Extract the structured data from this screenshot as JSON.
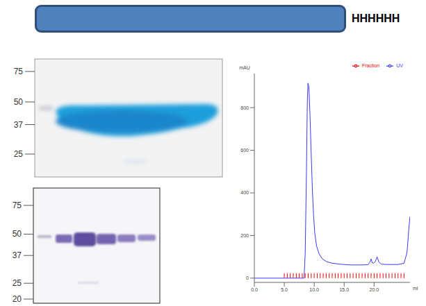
{
  "construct": {
    "tag": "HHHHHH"
  },
  "gels": [
    {
      "markers": [
        75,
        50,
        37,
        25
      ]
    },
    {
      "markers": [
        75,
        50,
        37,
        25,
        20
      ]
    }
  ],
  "chart_data": {
    "type": "line",
    "y_label": "mAU",
    "x_label": "ml",
    "xlim": [
      0,
      26
    ],
    "xticks": [
      {
        "value": 0,
        "label": "0.0"
      },
      {
        "value": 5,
        "label": "5.0"
      },
      {
        "value": 10,
        "label": "10.0"
      },
      {
        "value": 15,
        "label": "15.0"
      },
      {
        "value": 20,
        "label": "20.0"
      }
    ],
    "ylim": [
      -20,
      960
    ],
    "yticks": [
      0,
      200,
      400,
      600,
      800
    ],
    "legend": "top right",
    "series": [
      {
        "name": "UV",
        "color": "#3a3aff",
        "x": [
          0,
          4.9,
          5.0,
          8.3,
          8.5,
          8.7,
          8.85,
          8.95,
          9.1,
          9.3,
          9.5,
          9.7,
          9.9,
          10.1,
          10.4,
          10.8,
          11.3,
          12,
          13,
          14.5,
          16,
          18,
          19,
          19.3,
          19.5,
          19.7,
          19.9,
          20.2,
          20.5,
          20.8,
          21.2,
          22,
          24,
          25,
          25.5,
          25.8,
          26
        ],
        "values": [
          0,
          0,
          0,
          0,
          120,
          500,
          830,
          915,
          900,
          760,
          580,
          410,
          290,
          210,
          150,
          115,
          92,
          78,
          70,
          65,
          62,
          62,
          63,
          75,
          90,
          72,
          70,
          78,
          100,
          75,
          66,
          64,
          64,
          70,
          120,
          230,
          290
        ]
      },
      {
        "name": "Fraction",
        "color": "#ff0000",
        "type": "scatter",
        "marker": "tick",
        "x": [
          5,
          5.5,
          6,
          6.5,
          7,
          7.5,
          8,
          8.5,
          9,
          9.5,
          10,
          10.5,
          11,
          11.5,
          12,
          12.5,
          13,
          13.5,
          14,
          14.5,
          15,
          15.5,
          16,
          16.5,
          17,
          17.5,
          18,
          18.5,
          19,
          19.5,
          20,
          20.5,
          21,
          21.5,
          22,
          22.5,
          23,
          23.5,
          24,
          24.5,
          25
        ],
        "values": [
          0,
          0,
          0,
          0,
          0,
          0,
          0,
          0,
          0,
          0,
          0,
          0,
          0,
          0,
          0,
          0,
          0,
          0,
          0,
          0,
          0,
          0,
          0,
          0,
          0,
          0,
          0,
          0,
          0,
          0,
          0,
          0,
          0,
          0,
          0,
          0,
          0,
          0,
          0,
          0,
          0
        ]
      }
    ]
  }
}
